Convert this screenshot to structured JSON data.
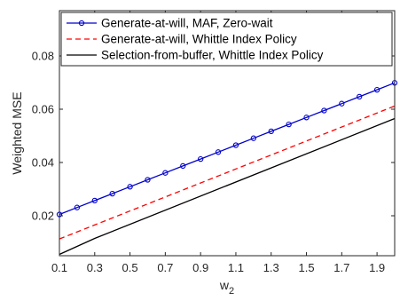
{
  "chart_data": {
    "type": "line",
    "title": "",
    "xlabel": "w",
    "xlabel_subscript": "2",
    "ylabel": "Weighted MSE",
    "xlim": [
      0.1,
      2.0
    ],
    "ylim": [
      0.005,
      0.097
    ],
    "xticks": [
      "0.1",
      "0.3",
      "0.5",
      "0.7",
      "0.9",
      "1.1",
      "1.3",
      "1.5",
      "1.7",
      "1.9"
    ],
    "yticks": [
      "0.02",
      "0.04",
      "0.06",
      "0.08"
    ],
    "grid": false,
    "legend_position": "top-left",
    "series": [
      {
        "name": "Generate-at-will, MAF, Zero-wait",
        "color": "#0000cc",
        "style": "solid-circle-markers",
        "x": [
          0.1,
          0.2,
          0.3,
          0.4,
          0.5,
          0.6,
          0.7,
          0.8,
          0.9,
          1.0,
          1.1,
          1.2,
          1.3,
          1.4,
          1.5,
          1.6,
          1.7,
          1.8,
          1.9,
          2.0
        ],
        "values": [
          0.0205,
          0.0231,
          0.0257,
          0.0283,
          0.0309,
          0.0335,
          0.0361,
          0.0387,
          0.0413,
          0.0439,
          0.0465,
          0.0491,
          0.0517,
          0.0543,
          0.0569,
          0.0595,
          0.0621,
          0.0647,
          0.0673,
          0.0699
        ]
      },
      {
        "name": "Generate-at-will, Whittle Index Policy",
        "color": "#ff0000",
        "style": "dashed",
        "x": [
          0.1,
          2.0
        ],
        "values": [
          0.0113,
          0.0612
        ]
      },
      {
        "name": "Selection-from-buffer, Whittle Index Policy",
        "color": "#000000",
        "style": "solid",
        "x": [
          0.1,
          0.2,
          0.3,
          2.0
        ],
        "values": [
          0.0055,
          0.0085,
          0.0115,
          0.0565
        ]
      }
    ]
  }
}
